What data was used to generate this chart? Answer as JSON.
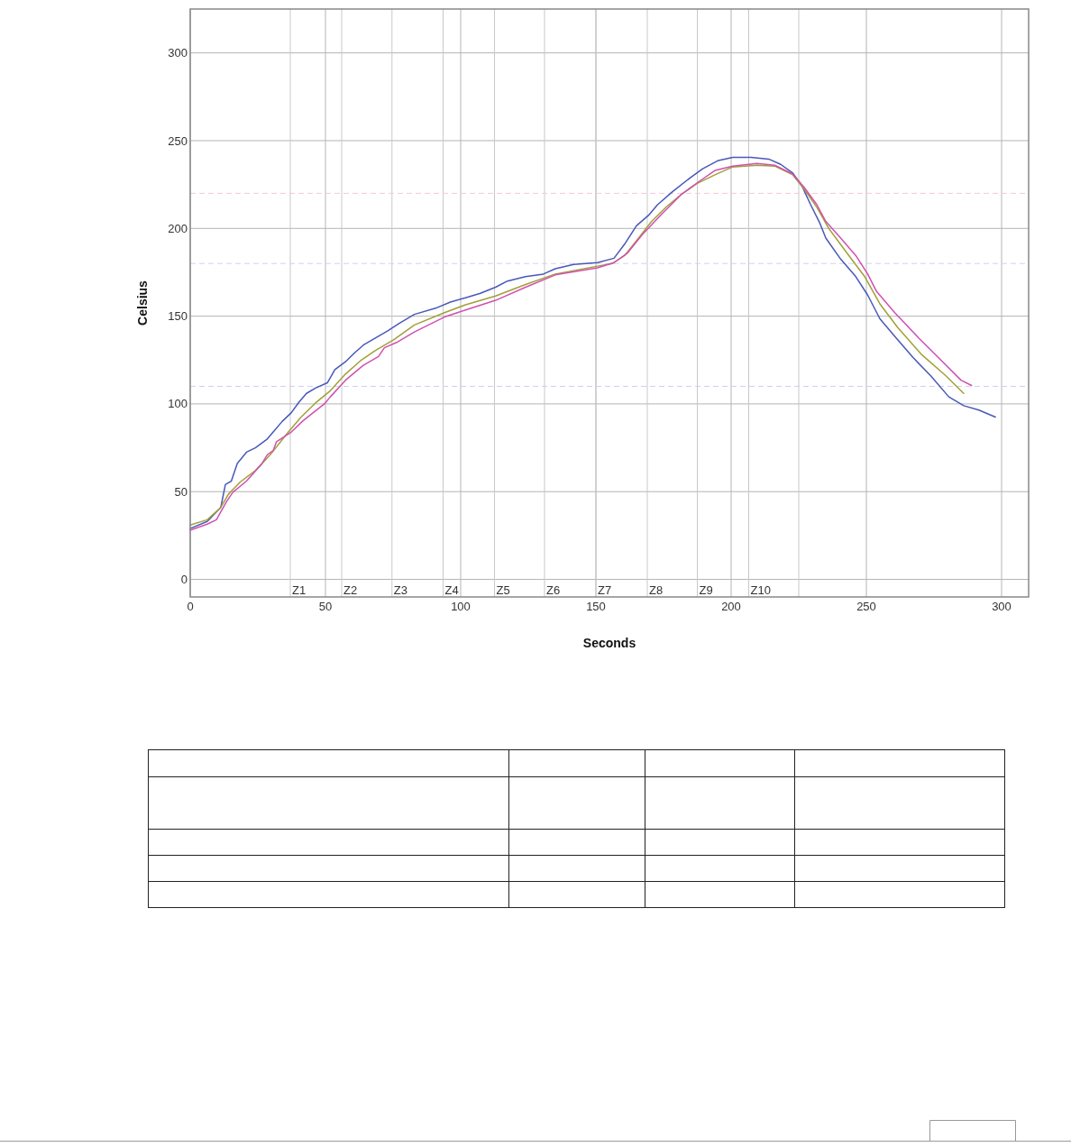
{
  "chart_data": {
    "type": "line",
    "xlabel": "Seconds",
    "ylabel": "Celsius",
    "xlim": [
      0,
      310
    ],
    "ylim": [
      -10,
      325
    ],
    "xticks": [
      0,
      50,
      100,
      150,
      200,
      250,
      300
    ],
    "yticks": [
      0,
      50,
      100,
      150,
      200,
      250,
      300
    ],
    "grid": true,
    "line_style": "solid",
    "marker": "none",
    "ref_lines": [
      {
        "axis": "x",
        "value": 37,
        "label": "Z1",
        "color": "#c8c8c8"
      },
      {
        "axis": "x",
        "value": 56,
        "label": "Z2",
        "color": "#c8c8c8"
      },
      {
        "axis": "x",
        "value": 74.6,
        "label": "Z3",
        "color": "#c8c8c8"
      },
      {
        "axis": "x",
        "value": 93.5,
        "label": "Z4",
        "color": "#c8c8c8"
      },
      {
        "axis": "x",
        "value": 112.5,
        "label": "Z5",
        "color": "#c8c8c8"
      },
      {
        "axis": "x",
        "value": 131,
        "label": "Z6",
        "color": "#c8c8c8"
      },
      {
        "axis": "x",
        "value": 150,
        "label": "Z7",
        "color": "#c8c8c8"
      },
      {
        "axis": "x",
        "value": 169,
        "label": "Z8",
        "color": "#c8c8c8"
      },
      {
        "axis": "x",
        "value": 187.5,
        "label": "Z9",
        "color": "#c8c8c8"
      },
      {
        "axis": "x",
        "value": 206.5,
        "label": "Z10",
        "color": "#c8c8c8"
      },
      {
        "axis": "x",
        "value": 225,
        "label": null,
        "color": "#c8c8c8"
      },
      {
        "axis": "y",
        "value": 220,
        "label": null,
        "color": "#f5c8d0",
        "line_style": "dashed"
      },
      {
        "axis": "y",
        "value": 180,
        "label": null,
        "color": "#d0d0f2",
        "line_style": "dashed"
      },
      {
        "axis": "y",
        "value": 110,
        "label": null,
        "color": "#d0d0f2",
        "line_style": "dashed"
      }
    ],
    "series": [
      {
        "color": "#4858b8",
        "x": [
          0,
          6.3,
          11.3,
          13,
          15.2,
          17.4,
          20.8,
          24.1,
          28.5,
          30.7,
          34,
          37.4,
          40.2,
          43,
          46.3,
          50.7,
          53.5,
          57.4,
          60.7,
          64,
          72.9,
          77.4,
          82.9,
          90.7,
          96.2,
          101.8,
          107.3,
          112.9,
          117.3,
          124,
          130.6,
          135,
          141.8,
          150.6,
          156.7,
          160.6,
          165,
          169.5,
          172.8,
          178.4,
          185,
          189.5,
          195,
          200.6,
          207.3,
          213.9,
          218.3,
          222.8,
          226.1,
          229.4,
          232.8,
          235,
          240.5,
          246.1,
          250.5,
          255,
          260.5,
          267.2,
          273.8,
          280.5,
          286,
          291.6,
          297.7
        ],
        "values": [
          29,
          33,
          41,
          54,
          56,
          66,
          72.5,
          75,
          80,
          84,
          90,
          95,
          101,
          106,
          109,
          112,
          119.5,
          124,
          129,
          133.5,
          141.5,
          146,
          151,
          154.5,
          158,
          160.5,
          163,
          166.5,
          170,
          172.5,
          174,
          177,
          179.5,
          180.5,
          183,
          191,
          201.5,
          207.5,
          213.5,
          221,
          229,
          234,
          238.5,
          240.5,
          240.5,
          239.5,
          236.5,
          231.5,
          224.5,
          213.5,
          203,
          194.5,
          182.5,
          172.5,
          162,
          148.5,
          138.5,
          126.5,
          116,
          104,
          99,
          96.5,
          92.5
        ]
      },
      {
        "color": "#a0a038",
        "x": [
          0,
          6.3,
          11.3,
          14.1,
          18.5,
          24.1,
          29.6,
          35.2,
          40.7,
          46.3,
          51.8,
          57.4,
          62.9,
          68.5,
          75.2,
          82.9,
          94,
          101.8,
          112.9,
          124,
          135,
          150.6,
          156.1,
          160.6,
          165,
          170.6,
          176.2,
          181.7,
          187.3,
          194,
          200.6,
          209.5,
          216.1,
          222.8,
          227.2,
          231.7,
          236.1,
          242.8,
          249.4,
          255,
          261.6,
          270.5,
          279.4,
          286
        ],
        "values": [
          31,
          34,
          41,
          48.5,
          55.5,
          62,
          71,
          82,
          92,
          100.5,
          107.5,
          117,
          124.5,
          130.5,
          136.5,
          145,
          152,
          156.5,
          161.5,
          168,
          174,
          178.5,
          180,
          184.5,
          193,
          204,
          212.5,
          219.5,
          225.5,
          230.5,
          235,
          236,
          235.5,
          230.5,
          222,
          212,
          200,
          186,
          172.5,
          157,
          143.5,
          128,
          116,
          106
        ]
      },
      {
        "color": "#d050b0",
        "x": [
          0,
          6.3,
          9.7,
          11.3,
          13.5,
          15.7,
          20.8,
          26.3,
          28.5,
          30.7,
          31.9,
          37.4,
          41.8,
          49.6,
          51.8,
          57.4,
          64,
          69.6,
          71.8,
          76.3,
          82.9,
          94,
          101.8,
          112.9,
          124,
          135,
          150.6,
          156.7,
          161.7,
          167.2,
          173.9,
          181.7,
          188.4,
          194,
          200.6,
          209.5,
          216.1,
          222.8,
          227.2,
          231.7,
          235,
          240.5,
          246.1,
          250.5,
          253.8,
          260.5,
          269.4,
          277.2,
          285,
          288.9
        ],
        "values": [
          28,
          31.5,
          34,
          38.5,
          44.5,
          49.5,
          56,
          65.5,
          71,
          73.5,
          78.5,
          84,
          90.5,
          100,
          104,
          113.5,
          122,
          127,
          132,
          135,
          141,
          149.5,
          153.5,
          159,
          166.5,
          173.5,
          177.5,
          180.5,
          186,
          196.5,
          207.5,
          219.5,
          227,
          233,
          235.5,
          237,
          236,
          231,
          223,
          213.5,
          204,
          194.5,
          184.5,
          174,
          164,
          152,
          137.5,
          125.5,
          113.5,
          110.5
        ]
      }
    ]
  }
}
